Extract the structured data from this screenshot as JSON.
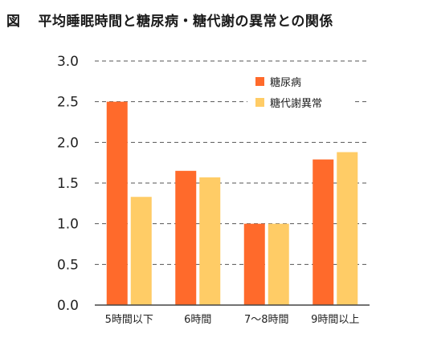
{
  "figure_label": "図",
  "title": "平均睡眠時間と糖尿病・糖代謝の異常との関係",
  "colors": {
    "diabetes": "#ff6a2b",
    "abnormal": "#ffcc66",
    "grid": "#555555",
    "axis": "#444444"
  },
  "chart_data": {
    "type": "bar",
    "categories": [
      "5時間以下",
      "6時間",
      "7～8時間",
      "9時間以上"
    ],
    "series": [
      {
        "name": "糖尿病",
        "values": [
          2.5,
          1.65,
          1.0,
          1.79
        ]
      },
      {
        "name": "糖代謝異常",
        "values": [
          1.33,
          1.57,
          1.0,
          1.88
        ]
      }
    ],
    "yticks": [
      "0.0",
      "0.5",
      "1.0",
      "1.5",
      "2.0",
      "2.5",
      "3.0"
    ],
    "ylim": [
      0,
      3.0
    ],
    "grid": true,
    "legend_position": "top-right"
  }
}
